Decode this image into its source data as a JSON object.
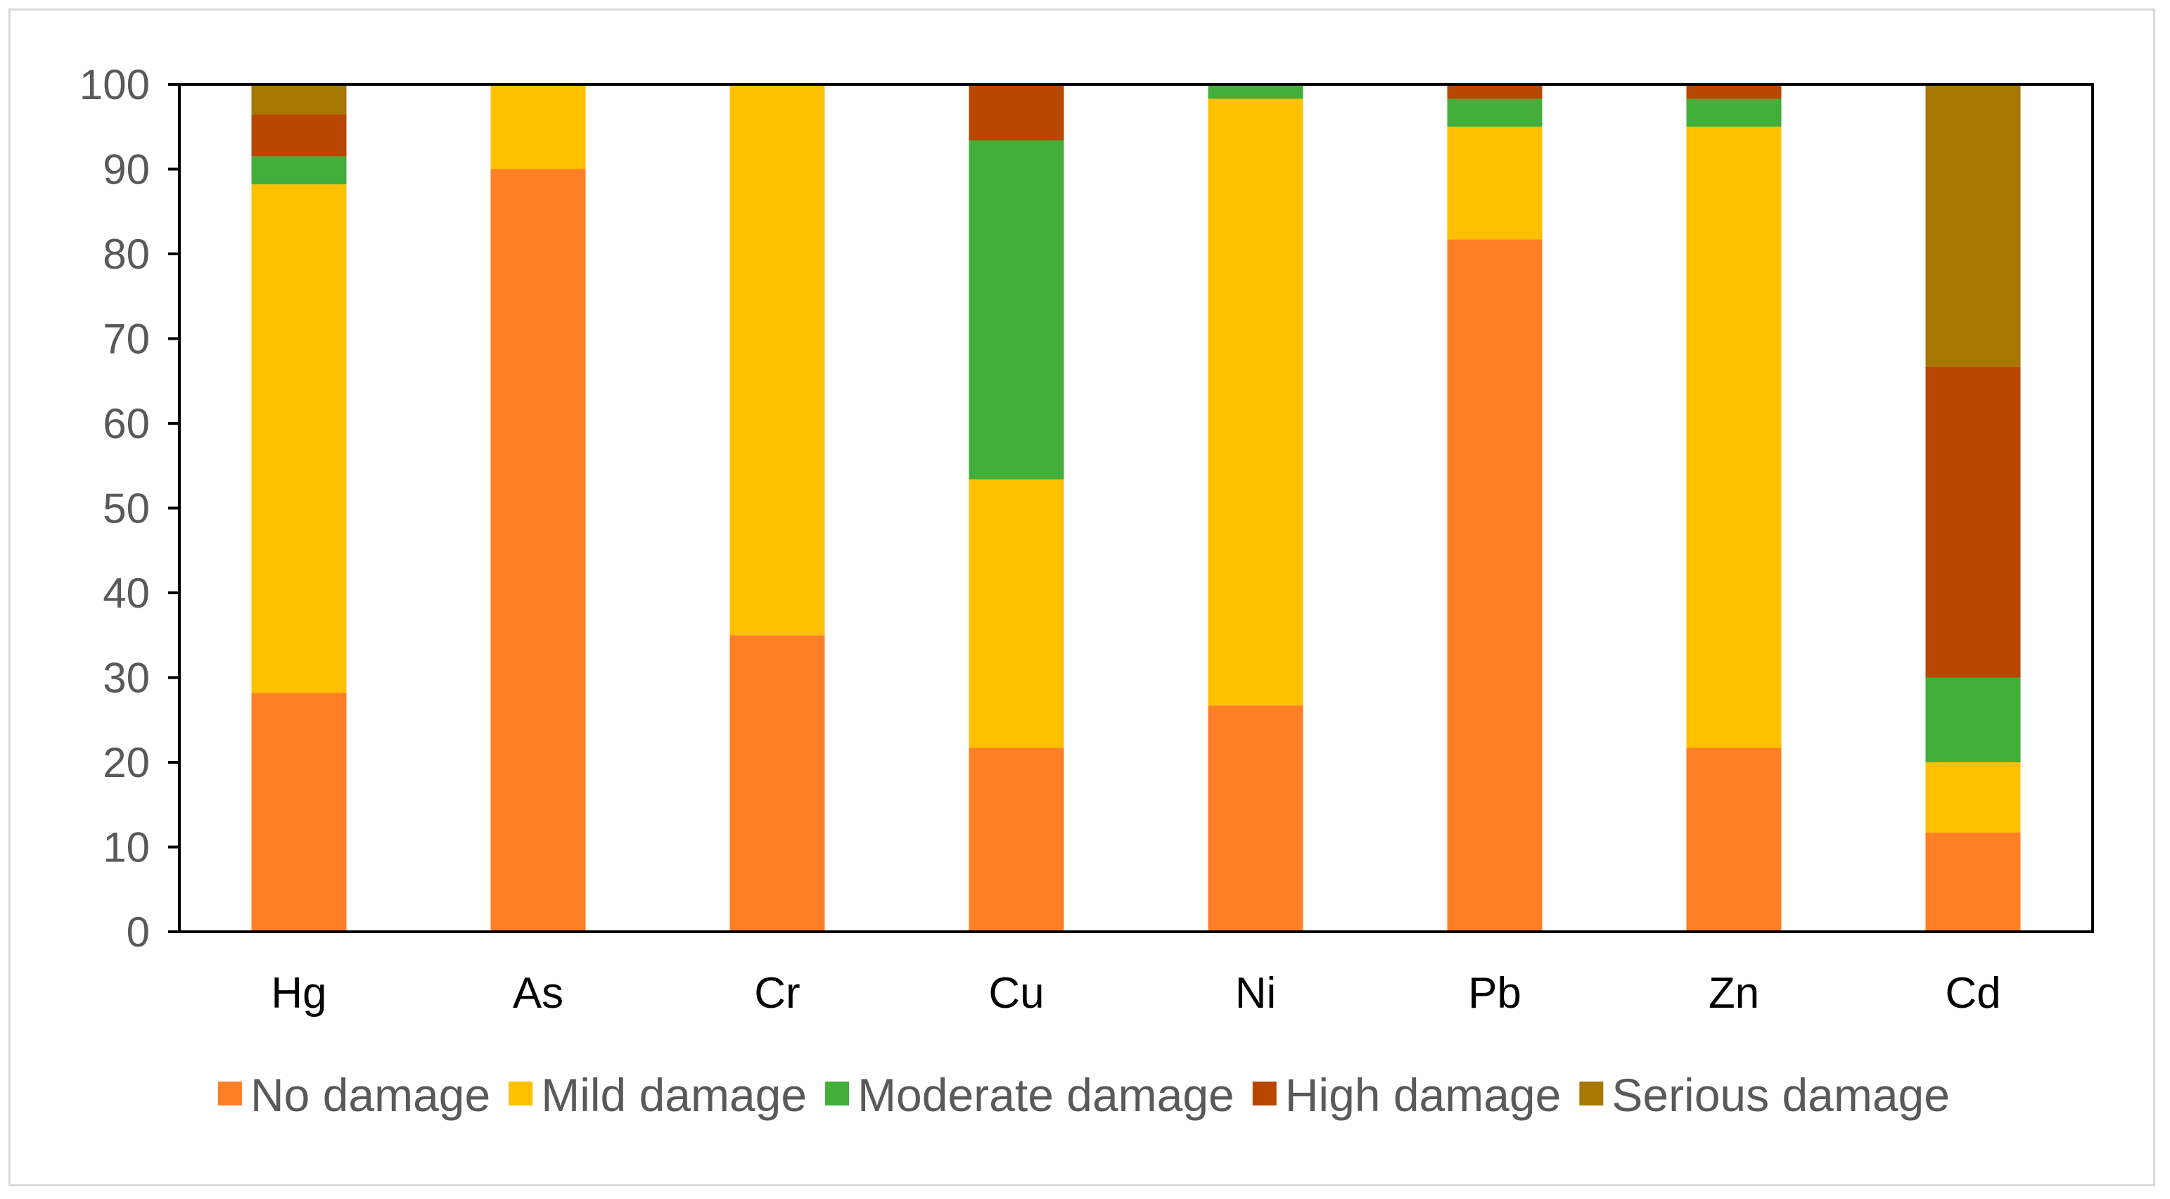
{
  "chart_data": {
    "type": "bar",
    "stacked": true,
    "title": "",
    "xlabel": "",
    "ylabel": "",
    "ylim": [
      0,
      100
    ],
    "yticks": [
      0,
      10,
      20,
      30,
      40,
      50,
      60,
      70,
      80,
      90,
      100
    ],
    "grid": false,
    "legend_position": "bottom",
    "categories": [
      "Hg",
      "As",
      "Cr",
      "Cu",
      "Ni",
      "Pb",
      "Zn",
      "Cd"
    ],
    "series": [
      {
        "name": "No damage",
        "color": "#FF7F27",
        "values": [
          28.2,
          90.0,
          35.0,
          21.7,
          26.7,
          81.7,
          21.7,
          11.7
        ]
      },
      {
        "name": "Mild damage",
        "color": "#FFC000",
        "values": [
          60.0,
          10.0,
          65.0,
          31.7,
          71.6,
          13.3,
          73.3,
          8.3
        ]
      },
      {
        "name": "Moderate damage",
        "color": "#43AE3A",
        "values": [
          3.3,
          0,
          0,
          40.0,
          1.7,
          3.3,
          3.3,
          10.0
        ]
      },
      {
        "name": "High damage",
        "color": "#B84800",
        "values": [
          5.0,
          0,
          0,
          6.6,
          0,
          1.7,
          1.7,
          36.7
        ]
      },
      {
        "name": "Serious damage",
        "color": "#A67800",
        "values": [
          3.5,
          0,
          0,
          0,
          0,
          0,
          0,
          33.3
        ]
      }
    ]
  }
}
